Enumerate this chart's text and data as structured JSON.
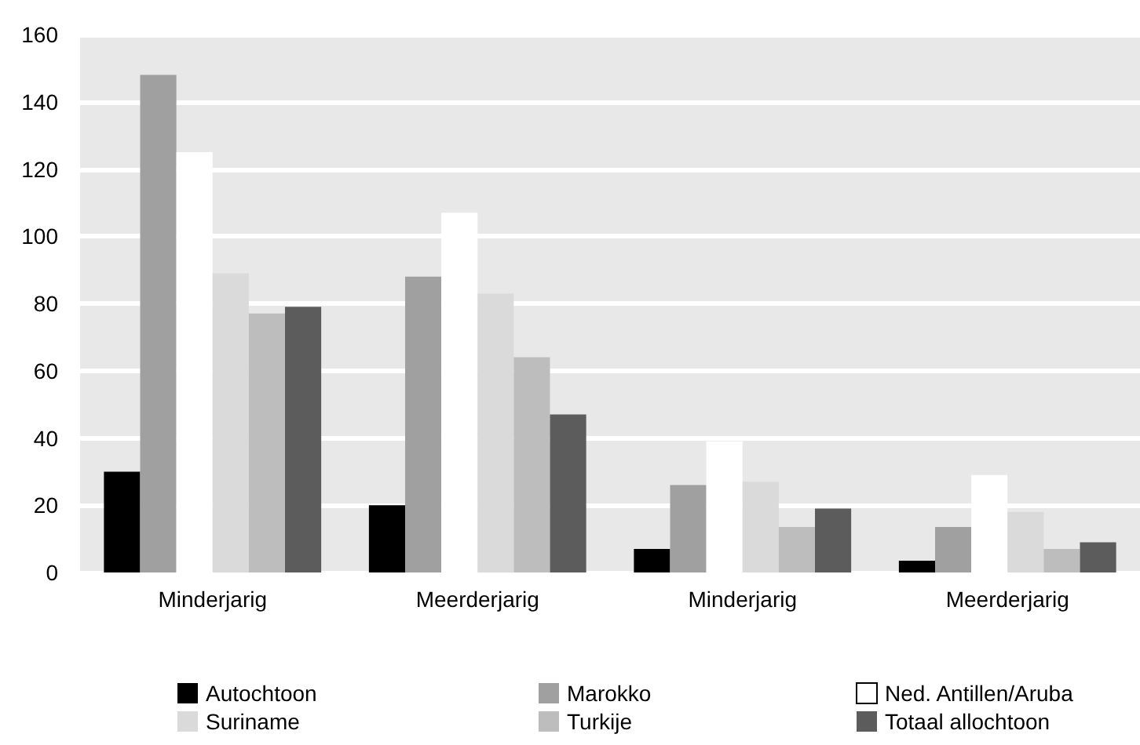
{
  "chart_data": {
    "type": "bar",
    "categories": [
      "Minderjarig",
      "Meerderjarig",
      "Minderjarig",
      "Meerderjarig"
    ],
    "series": [
      {
        "name": "Autochtoon",
        "color": "#000000",
        "values": [
          30,
          20,
          7,
          3.5
        ]
      },
      {
        "name": "Marokko",
        "color": "#a0a0a0",
        "values": [
          148,
          88,
          26,
          13.5
        ]
      },
      {
        "name": "Ned. Antillen/Aruba",
        "color": "#ffffff",
        "values": [
          125,
          107,
          39,
          29
        ]
      },
      {
        "name": "Suriname",
        "color": "#dadada",
        "values": [
          89,
          83,
          27,
          18
        ]
      },
      {
        "name": "Turkije",
        "color": "#bdbdbd",
        "values": [
          77,
          64,
          13.5,
          7
        ]
      },
      {
        "name": "Totaal allochtoon",
        "color": "#5c5c5c",
        "values": [
          79,
          47,
          19,
          9
        ]
      }
    ],
    "ylim": [
      0,
      160
    ],
    "yticks": [
      0,
      20,
      40,
      60,
      80,
      100,
      120,
      140,
      160
    ],
    "grid": "y",
    "legend": "bottom"
  }
}
